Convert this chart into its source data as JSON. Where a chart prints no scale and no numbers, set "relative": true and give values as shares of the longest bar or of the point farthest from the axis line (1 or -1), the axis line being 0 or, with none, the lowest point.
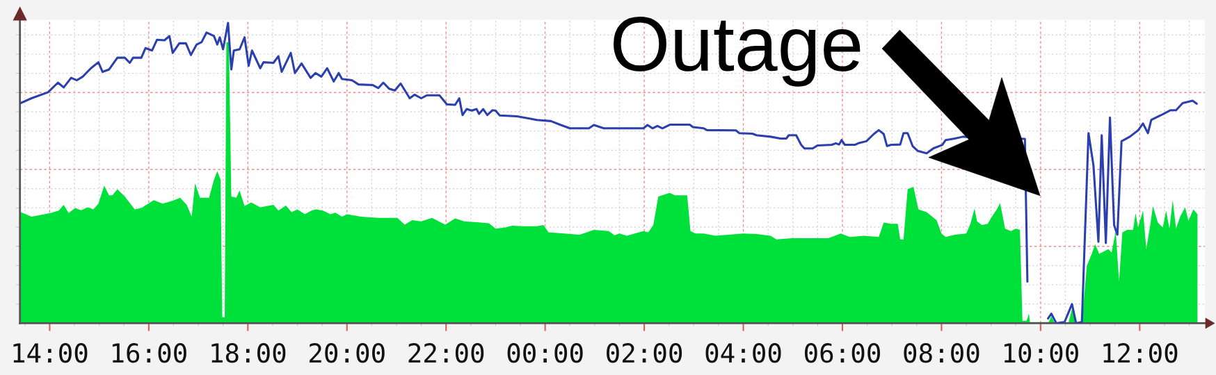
{
  "chart_data": {
    "type": "area",
    "relative": true,
    "grid": true,
    "tick_labels": "x",
    "xlim": [
      "2000-01-01T13:24",
      "2000-01-02T13:19"
    ],
    "xticks": [
      {
        "value": "2000-01-01T14:00",
        "label": "14:00"
      },
      {
        "value": "2000-01-01T16:00",
        "label": "16:00"
      },
      {
        "value": "2000-01-01T18:00",
        "label": "18:00"
      },
      {
        "value": "2000-01-01T20:00",
        "label": "20:00"
      },
      {
        "value": "2000-01-01T22:00",
        "label": "22:00"
      },
      {
        "value": "2000-01-02T00:00",
        "label": "00:00"
      },
      {
        "value": "2000-01-02T02:00",
        "label": "02:00"
      },
      {
        "value": "2000-01-02T04:00",
        "label": "04:00"
      },
      {
        "value": "2000-01-02T06:00",
        "label": "06:00"
      },
      {
        "value": "2000-01-02T08:00",
        "label": "08:00"
      },
      {
        "value": "2000-01-02T10:00",
        "label": "10:00"
      },
      {
        "value": "2000-01-02T12:00",
        "label": "12:00"
      }
    ],
    "annotations": [
      "Outage"
    ],
    "series": [
      {
        "color": "#00e03a",
        "x": [
          "2000-01-01T13:25",
          "2000-01-01T13:38",
          "2000-01-01T13:46",
          "2000-01-01T14:01",
          "2000-01-01T14:11",
          "2000-01-01T14:17",
          "2000-01-01T14:23",
          "2000-01-01T14:31",
          "2000-01-01T14:38",
          "2000-01-01T14:46",
          "2000-01-01T14:53",
          "2000-01-01T14:59",
          "2000-01-01T15:06",
          "2000-01-01T15:12",
          "2000-01-01T15:16",
          "2000-01-01T15:22",
          "2000-01-01T15:31",
          "2000-01-01T15:43",
          "2000-01-01T15:51",
          "2000-01-01T16:06",
          "2000-01-01T16:17",
          "2000-01-01T16:29",
          "2000-01-01T16:38",
          "2000-01-01T16:46",
          "2000-01-01T16:52",
          "2000-01-01T16:56",
          "2000-01-01T17:02",
          "2000-01-01T17:13",
          "2000-01-01T17:19",
          "2000-01-01T17:23",
          "2000-01-01T17:27",
          "2000-01-01T17:29",
          "2000-01-01T17:32",
          "2000-01-01T17:34",
          "2000-01-01T17:37",
          "2000-01-01T17:40",
          "2000-01-01T17:46",
          "2000-01-01T17:50",
          "2000-01-01T17:56",
          "2000-01-01T18:04",
          "2000-01-01T18:15",
          "2000-01-01T18:31",
          "2000-01-01T18:37",
          "2000-01-01T18:46",
          "2000-01-01T18:53",
          "2000-01-01T19:00",
          "2000-01-01T19:09",
          "2000-01-01T19:17",
          "2000-01-01T19:22",
          "2000-01-01T19:31",
          "2000-01-01T19:40",
          "2000-01-01T19:46",
          "2000-01-01T19:54",
          "2000-01-01T20:00",
          "2000-01-01T20:17",
          "2000-01-01T20:38",
          "2000-01-01T21:01",
          "2000-01-01T21:10",
          "2000-01-01T21:19",
          "2000-01-01T21:30",
          "2000-01-01T21:43",
          "2000-01-01T21:59",
          "2000-01-01T22:11",
          "2000-01-01T22:22",
          "2000-01-01T22:40",
          "2000-01-01T22:52",
          "2000-01-01T23:00",
          "2000-01-01T23:12",
          "2000-01-01T23:20",
          "2000-01-01T23:32",
          "2000-01-01T23:50",
          "2000-01-01T23:58",
          "2000-01-02T00:04",
          "2000-01-02T00:42",
          "2000-01-02T00:59",
          "2000-01-02T01:17",
          "2000-01-02T01:24",
          "2000-01-02T01:30",
          "2000-01-02T01:39",
          "2000-01-02T01:59",
          "2000-01-02T02:05",
          "2000-01-02T02:11",
          "2000-01-02T02:17",
          "2000-01-02T02:31",
          "2000-01-02T02:37",
          "2000-01-02T02:52",
          "2000-01-02T02:56",
          "2000-01-02T03:02",
          "2000-01-02T03:12",
          "2000-01-02T03:26",
          "2000-01-02T04:00",
          "2000-01-02T04:16",
          "2000-01-02T04:33",
          "2000-01-02T04:40",
          "2000-01-02T04:59",
          "2000-01-02T05:43",
          "2000-01-02T05:58",
          "2000-01-02T06:09",
          "2000-01-02T06:26",
          "2000-01-02T06:44",
          "2000-01-02T06:50",
          "2000-01-02T06:59",
          "2000-01-02T07:07",
          "2000-01-02T07:10",
          "2000-01-02T07:14",
          "2000-01-02T07:19",
          "2000-01-02T07:26",
          "2000-01-02T07:32",
          "2000-01-02T07:42",
          "2000-01-02T07:54",
          "2000-01-02T08:00",
          "2000-01-02T08:05",
          "2000-01-02T08:16",
          "2000-01-02T08:30",
          "2000-01-02T08:35",
          "2000-01-02T08:40",
          "2000-01-02T08:43",
          "2000-01-02T08:49",
          "2000-01-02T08:56",
          "2000-01-02T09:01",
          "2000-01-02T09:07",
          "2000-01-02T09:11",
          "2000-01-02T09:17",
          "2000-01-02T09:24",
          "2000-01-02T09:30",
          "2000-01-02T09:35",
          "2000-01-02T09:38",
          "2000-01-02T09:43",
          "2000-01-02T09:46",
          "2000-01-02T09:47",
          "2000-01-02T10:10",
          "2000-01-02T10:13",
          "2000-01-02T10:17",
          "2000-01-02T10:34",
          "2000-01-02T10:38",
          "2000-01-02T10:43",
          "2000-01-02T10:50",
          "2000-01-02T10:56",
          "2000-01-02T11:02",
          "2000-01-02T11:06",
          "2000-01-02T11:11",
          "2000-01-02T11:22",
          "2000-01-02T11:26",
          "2000-01-02T11:31",
          "2000-01-02T11:35",
          "2000-01-02T11:39",
          "2000-01-02T11:45",
          "2000-01-02T11:52",
          "2000-01-02T11:55",
          "2000-01-02T11:58",
          "2000-01-02T12:04",
          "2000-01-02T12:08",
          "2000-01-02T12:13",
          "2000-01-02T12:16",
          "2000-01-02T12:22",
          "2000-01-02T12:28",
          "2000-01-02T12:32",
          "2000-01-02T12:36",
          "2000-01-02T12:40",
          "2000-01-02T12:44",
          "2000-01-02T12:49",
          "2000-01-02T12:55",
          "2000-01-02T12:59",
          "2000-01-02T13:05",
          "2000-01-02T13:10"
        ],
        "values": [
          0.37,
          0.355,
          0.359,
          0.367,
          0.375,
          0.394,
          0.367,
          0.384,
          0.376,
          0.386,
          0.379,
          0.398,
          0.458,
          0.426,
          0.426,
          0.446,
          0.422,
          0.379,
          0.384,
          0.41,
          0.398,
          0.408,
          0.418,
          0.394,
          0.355,
          0.466,
          0.418,
          0.418,
          0.478,
          0.506,
          0.478,
          0.02,
          0.02,
          0.936,
          0.936,
          0.422,
          0.418,
          0.442,
          0.39,
          0.402,
          0.386,
          0.394,
          0.375,
          0.392,
          0.37,
          0.379,
          0.363,
          0.375,
          0.379,
          0.375,
          0.363,
          0.368,
          0.355,
          0.363,
          0.355,
          0.351,
          0.351,
          0.328,
          0.343,
          0.339,
          0.351,
          0.328,
          0.349,
          0.339,
          0.336,
          0.333,
          0.315,
          0.319,
          0.325,
          0.323,
          0.323,
          0.327,
          0.303,
          0.295,
          0.311,
          0.307,
          0.293,
          0.299,
          0.291,
          0.307,
          0.303,
          0.327,
          0.422,
          0.434,
          0.426,
          0.426,
          0.307,
          0.299,
          0.299,
          0.291,
          0.299,
          0.297,
          0.291,
          0.279,
          0.283,
          0.283,
          0.299,
          0.287,
          0.291,
          0.287,
          0.335,
          0.331,
          0.331,
          0.279,
          0.279,
          0.446,
          0.454,
          0.379,
          0.37,
          0.343,
          0.299,
          0.287,
          0.295,
          0.299,
          0.331,
          0.382,
          0.339,
          0.327,
          0.331,
          0.355,
          0.379,
          0.4,
          0.315,
          0.307,
          0.315,
          0.311,
          0.008,
          0.008,
          0.032,
          0.004,
          0.004,
          0.024,
          0,
          0.004,
          0.048,
          0.004,
          0.004,
          0.191,
          0.231,
          0.263,
          0.231,
          0.247,
          0.235,
          0.307,
          0.139,
          0.303,
          0.311,
          0.311,
          0.367,
          0.319,
          0.375,
          0.247,
          0.331,
          0.39,
          0.335,
          0.319,
          0.375,
          0.315,
          0.41,
          0.315,
          0.355,
          0.386,
          0.341,
          0.379,
          0.363
        ]
      },
      {
        "type": "line",
        "color": "#2b3fae",
        "x": [
          "2000-01-01T13:25",
          "2000-01-01T13:38",
          "2000-01-01T13:58",
          "2000-01-01T14:10",
          "2000-01-01T14:17",
          "2000-01-01T14:26",
          "2000-01-01T14:33",
          "2000-01-01T14:40",
          "2000-01-01T14:50",
          "2000-01-01T14:59",
          "2000-01-01T15:04",
          "2000-01-01T15:12",
          "2000-01-01T15:22",
          "2000-01-01T15:31",
          "2000-01-01T15:37",
          "2000-01-01T15:41",
          "2000-01-01T15:51",
          "2000-01-01T15:56",
          "2000-01-01T16:04",
          "2000-01-01T16:10",
          "2000-01-01T16:19",
          "2000-01-01T16:25",
          "2000-01-01T16:29",
          "2000-01-01T16:37",
          "2000-01-01T16:45",
          "2000-01-01T16:51",
          "2000-01-01T16:58",
          "2000-01-01T17:04",
          "2000-01-01T17:10",
          "2000-01-01T17:19",
          "2000-01-01T17:23",
          "2000-01-01T17:26",
          "2000-01-01T17:30",
          "2000-01-01T17:36",
          "2000-01-01T17:40",
          "2000-01-01T17:43",
          "2000-01-01T17:50",
          "2000-01-01T17:56",
          "2000-01-01T18:01",
          "2000-01-01T18:05",
          "2000-01-01T18:15",
          "2000-01-01T18:19",
          "2000-01-01T18:31",
          "2000-01-01T18:37",
          "2000-01-01T18:41",
          "2000-01-01T18:52",
          "2000-01-01T18:57",
          "2000-01-01T19:05",
          "2000-01-01T19:16",
          "2000-01-01T19:22",
          "2000-01-01T19:29",
          "2000-01-01T19:36",
          "2000-01-01T19:44",
          "2000-01-01T19:50",
          "2000-01-01T19:54",
          "2000-01-01T20:06",
          "2000-01-01T20:14",
          "2000-01-01T20:31",
          "2000-01-01T20:38",
          "2000-01-01T20:44",
          "2000-01-01T20:51",
          "2000-01-01T20:58",
          "2000-01-01T21:05",
          "2000-01-01T21:16",
          "2000-01-01T21:22",
          "2000-01-01T21:30",
          "2000-01-01T21:37",
          "2000-01-01T21:52",
          "2000-01-01T22:01",
          "2000-01-01T22:11",
          "2000-01-01T22:16",
          "2000-01-01T22:20",
          "2000-01-01T22:25",
          "2000-01-01T22:31",
          "2000-01-01T22:37",
          "2000-01-01T22:40",
          "2000-01-01T22:45",
          "2000-01-01T22:50",
          "2000-01-01T22:56",
          "2000-01-01T23:00",
          "2000-01-01T23:05",
          "2000-01-01T23:26",
          "2000-01-01T23:50",
          "2000-01-02T00:07",
          "2000-01-02T00:19",
          "2000-01-02T00:30",
          "2000-01-02T00:53",
          "2000-01-02T00:59",
          "2000-01-02T01:11",
          "2000-01-02T01:59",
          "2000-01-02T02:04",
          "2000-01-02T02:10",
          "2000-01-02T02:16",
          "2000-01-02T02:22",
          "2000-01-02T02:31",
          "2000-01-02T02:55",
          "2000-01-02T02:59",
          "2000-01-02T03:12",
          "2000-01-02T03:16",
          "2000-01-02T03:51",
          "2000-01-02T03:55",
          "2000-01-02T04:11",
          "2000-01-02T04:16",
          "2000-01-02T04:33",
          "2000-01-02T04:45",
          "2000-01-02T04:52",
          "2000-01-02T04:55",
          "2000-01-02T05:04",
          "2000-01-02T05:10",
          "2000-01-02T05:14",
          "2000-01-02T05:24",
          "2000-01-02T05:30",
          "2000-01-02T05:47",
          "2000-01-02T05:52",
          "2000-01-02T05:56",
          "2000-01-02T05:59",
          "2000-01-02T06:03",
          "2000-01-02T06:15",
          "2000-01-02T06:20",
          "2000-01-02T06:29",
          "2000-01-02T06:38",
          "2000-01-02T06:44",
          "2000-01-02T06:50",
          "2000-01-02T06:54",
          "2000-01-02T06:59",
          "2000-01-02T07:10",
          "2000-01-02T07:14",
          "2000-01-02T07:19",
          "2000-01-02T07:25",
          "2000-01-02T07:31",
          "2000-01-02T07:42",
          "2000-01-02T07:50",
          "2000-01-02T08:01",
          "2000-01-02T08:05",
          "2000-01-02T08:16",
          "2000-01-02T08:26",
          "2000-01-02T09:41",
          "2000-01-02T09:44",
          "2000-01-02T09:54",
          "2000-01-02T10:09",
          "2000-01-02T10:13",
          "2000-01-02T10:19",
          "2000-01-02T10:29",
          "2000-01-02T10:38",
          "2000-01-02T10:43",
          "2000-01-02T10:50",
          "2000-01-02T10:58",
          "2000-01-02T11:04",
          "2000-01-02T11:10",
          "2000-01-02T11:14",
          "2000-01-02T11:19",
          "2000-01-02T11:24",
          "2000-01-02T11:29",
          "2000-01-02T11:33",
          "2000-01-02T11:38",
          "2000-01-02T11:48",
          "2000-01-02T11:58",
          "2000-01-02T12:04",
          "2000-01-02T12:10",
          "2000-01-02T12:14",
          "2000-01-02T12:26",
          "2000-01-02T12:37",
          "2000-01-02T12:44",
          "2000-01-02T12:52",
          "2000-01-02T13:04",
          "2000-01-02T13:09"
        ],
        "values": [
          0.733,
          0.749,
          0.769,
          0.801,
          0.785,
          0.817,
          0.809,
          0.821,
          0.849,
          0.869,
          0.837,
          0.845,
          0.884,
          0.884,
          0.867,
          0.884,
          0.884,
          0.916,
          0.908,
          0.944,
          0.942,
          0.956,
          0.9,
          0.932,
          0.932,
          0.893,
          0.928,
          0.936,
          0.968,
          0.956,
          0.928,
          0.952,
          0.912,
          1.0,
          0.845,
          0.908,
          0.912,
          0.952,
          0.857,
          0.908,
          0.849,
          0.869,
          0.867,
          0.889,
          0.837,
          0.9,
          0.833,
          0.865,
          0.817,
          0.833,
          0.821,
          0.849,
          0.805,
          0.833,
          0.813,
          0.809,
          0.795,
          0.793,
          0.783,
          0.801,
          0.781,
          0.775,
          0.798,
          0.749,
          0.761,
          0.749,
          0.759,
          0.759,
          0.729,
          0.727,
          0.749,
          0.693,
          0.713,
          0.708,
          0.713,
          0.697,
          0.713,
          0.693,
          0.709,
          0.708,
          0.692,
          0.689,
          0.677,
          0.673,
          0.66,
          0.649,
          0.649,
          0.66,
          0.649,
          0.649,
          0.66,
          0.649,
          0.657,
          0.649,
          0.661,
          0.661,
          0.653,
          0.649,
          0.643,
          0.642,
          0.633,
          0.631,
          0.626,
          0.621,
          0.615,
          0.615,
          0.626,
          0.626,
          0.594,
          0.582,
          0.582,
          0.592,
          0.594,
          0.599,
          0.595,
          0.61,
          0.594,
          0.594,
          0.6,
          0.606,
          0.63,
          0.643,
          0.63,
          0.59,
          0.594,
          0.595,
          0.633,
          0.633,
          0.59,
          0.574,
          0.566,
          0.582,
          0.594,
          0.61,
          0.615,
          0.621,
          0.614,
          0.139,
          null,
          0.016,
          0.032,
          0.0,
          0.004,
          0.064,
          0.0,
          0.004,
          0.633,
          0.526,
          0.271,
          0.626,
          0.267,
          0.685,
          0.327,
          0.295,
          0.606,
          0.621,
          0.642,
          0.665,
          0.633,
          0.677,
          0.693,
          0.709,
          0.709,
          0.733,
          0.741,
          0.731
        ]
      }
    ]
  }
}
